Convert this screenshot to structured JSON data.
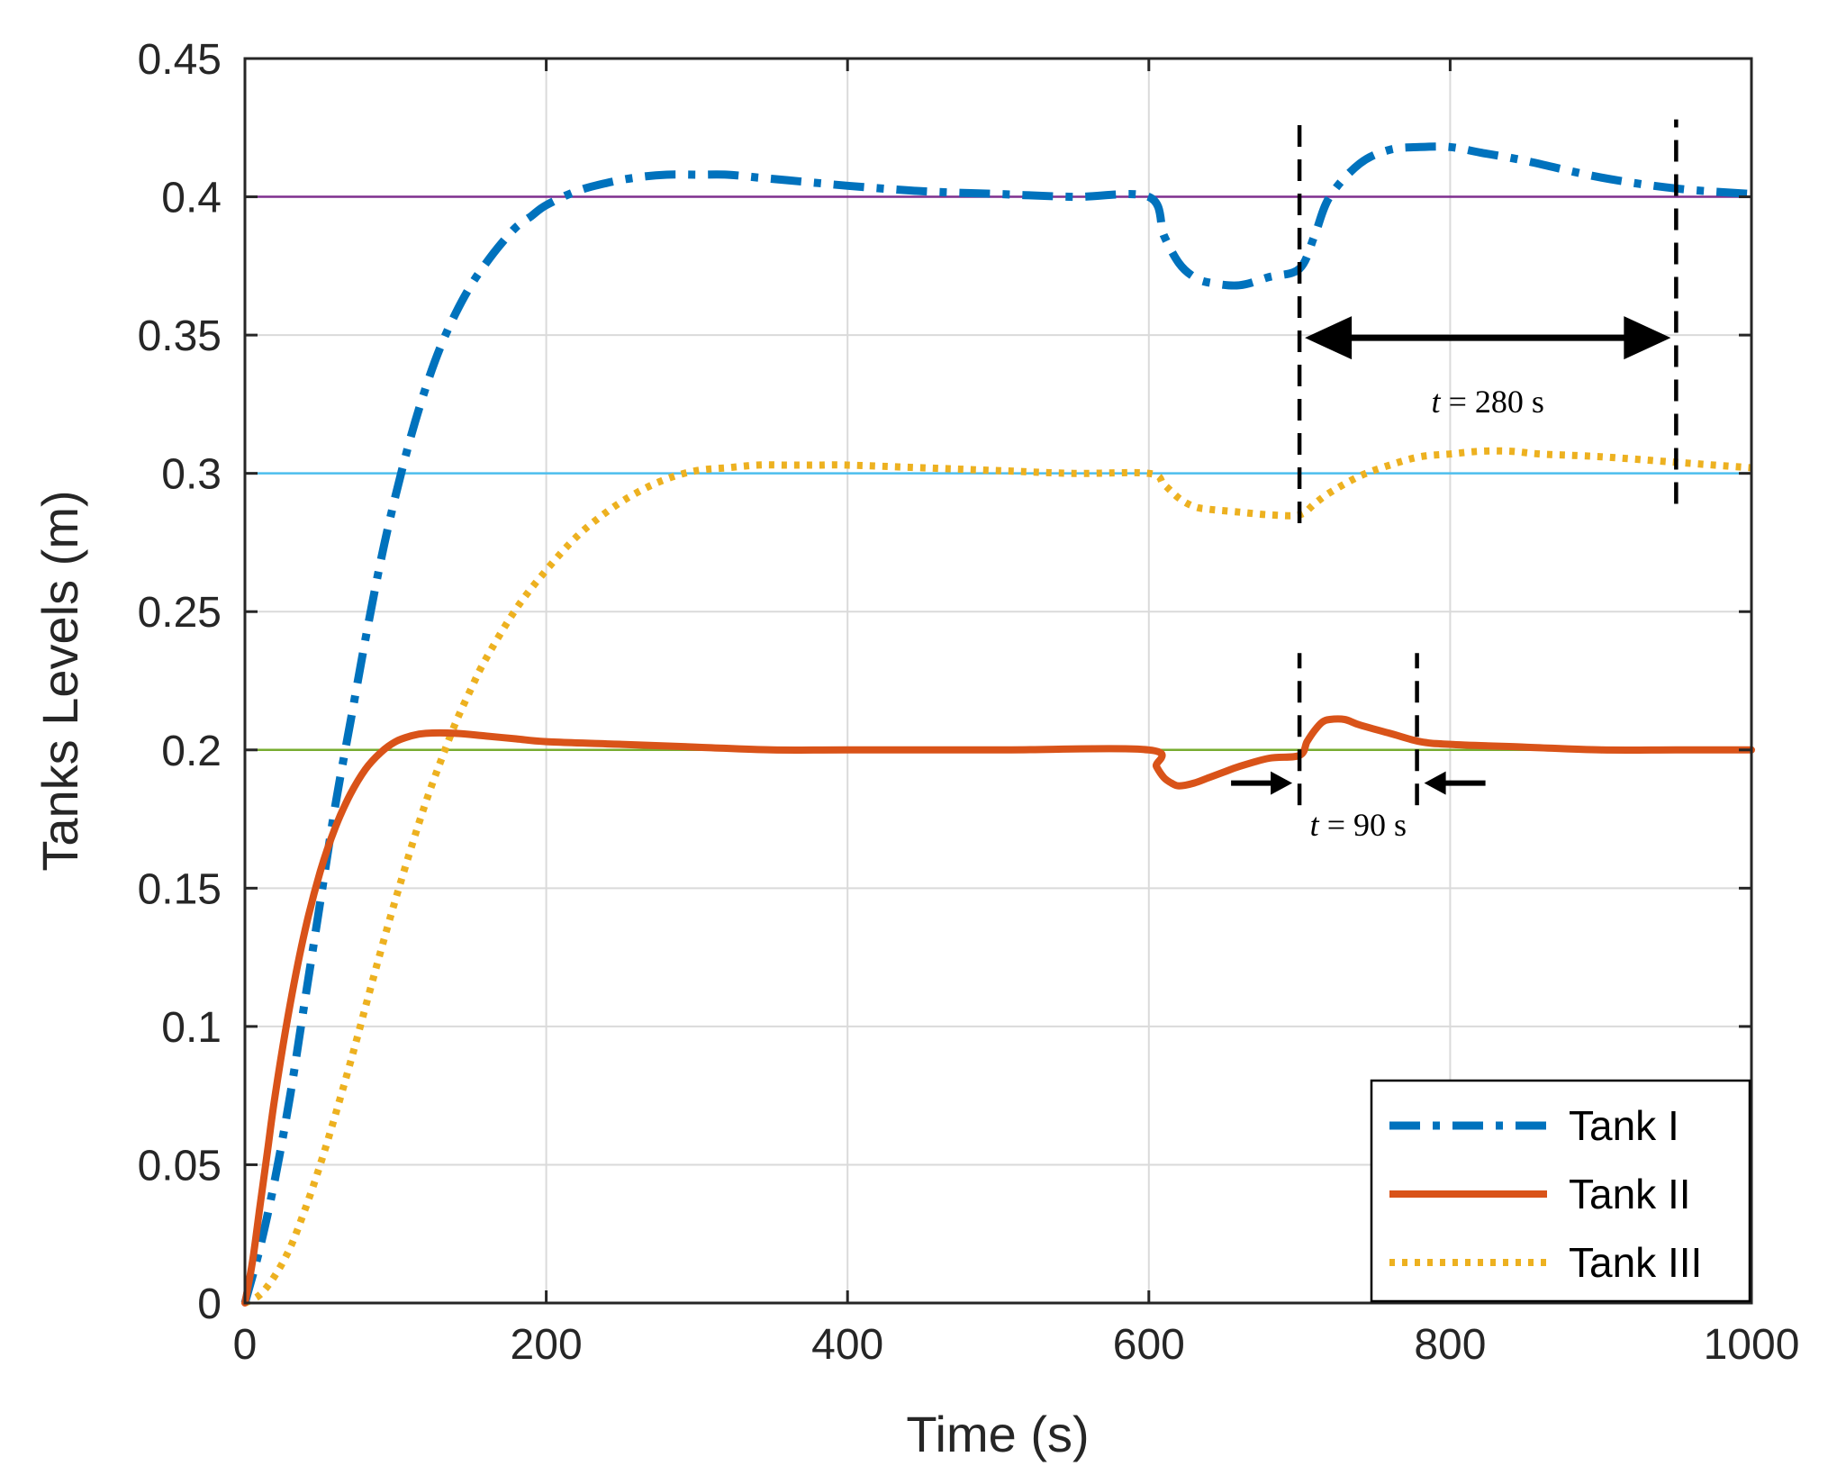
{
  "chart_data": {
    "type": "line",
    "title": "",
    "xlabel": "Time (s)",
    "ylabel": "Tanks Levels (m)",
    "xlim": [
      0,
      1000
    ],
    "ylim": [
      0,
      0.45
    ],
    "xticks": [
      0,
      200,
      400,
      600,
      800,
      1000
    ],
    "xtick_labels": [
      "0",
      "200",
      "400",
      "600",
      "800",
      "1000"
    ],
    "yticks": [
      0,
      0.05,
      0.1,
      0.15,
      0.2,
      0.25,
      0.3,
      0.35,
      0.4,
      0.45
    ],
    "ytick_labels": [
      "0",
      "0.05",
      "0.1",
      "0.15",
      "0.2",
      "0.25",
      "0.3",
      "0.35",
      "0.4",
      "0.45"
    ],
    "grid": true,
    "legend_position": "bottom-right",
    "series": [
      {
        "name": "Tank I",
        "color": "#0072BD",
        "style": "dash-dot",
        "x": [
          0,
          10,
          20,
          30,
          40,
          50,
          60,
          70,
          80,
          90,
          100,
          110,
          120,
          130,
          140,
          150,
          160,
          170,
          180,
          190,
          200,
          220,
          240,
          260,
          280,
          300,
          320,
          340,
          360,
          380,
          400,
          450,
          500,
          550,
          600,
          610,
          620,
          630,
          640,
          660,
          680,
          700,
          710,
          720,
          740,
          760,
          780,
          800,
          820,
          850,
          900,
          950,
          1000
        ],
        "y": [
          0,
          0.02,
          0.045,
          0.075,
          0.11,
          0.145,
          0.18,
          0.21,
          0.24,
          0.268,
          0.292,
          0.313,
          0.331,
          0.346,
          0.358,
          0.368,
          0.376,
          0.383,
          0.389,
          0.393,
          0.397,
          0.402,
          0.405,
          0.407,
          0.408,
          0.408,
          0.408,
          0.407,
          0.406,
          0.405,
          0.404,
          0.402,
          0.401,
          0.4,
          0.4,
          0.386,
          0.376,
          0.371,
          0.369,
          0.368,
          0.371,
          0.374,
          0.386,
          0.4,
          0.412,
          0.417,
          0.418,
          0.418,
          0.416,
          0.413,
          0.407,
          0.403,
          0.401
        ]
      },
      {
        "name": "Tank II",
        "color": "#D95319",
        "style": "solid",
        "x": [
          0,
          5,
          10,
          15,
          20,
          30,
          40,
          50,
          60,
          70,
          80,
          90,
          100,
          110,
          120,
          140,
          160,
          180,
          200,
          250,
          300,
          350,
          400,
          500,
          600,
          605,
          610,
          615,
          620,
          630,
          640,
          650,
          660,
          680,
          700,
          705,
          710,
          715,
          720,
          730,
          740,
          760,
          780,
          800,
          850,
          900,
          950,
          1000
        ],
        "y": [
          0,
          0.015,
          0.035,
          0.055,
          0.075,
          0.108,
          0.135,
          0.156,
          0.172,
          0.184,
          0.193,
          0.199,
          0.203,
          0.205,
          0.206,
          0.206,
          0.205,
          0.204,
          0.203,
          0.202,
          0.201,
          0.2,
          0.2,
          0.2,
          0.2,
          0.194,
          0.19,
          0.188,
          0.187,
          0.188,
          0.19,
          0.192,
          0.194,
          0.197,
          0.198,
          0.203,
          0.207,
          0.21,
          0.211,
          0.211,
          0.209,
          0.206,
          0.203,
          0.202,
          0.201,
          0.2,
          0.2,
          0.2
        ]
      },
      {
        "name": "Tank III",
        "color": "#EDB120",
        "style": "dotted",
        "x": [
          0,
          10,
          20,
          30,
          40,
          50,
          60,
          70,
          80,
          90,
          100,
          110,
          120,
          130,
          140,
          150,
          160,
          180,
          200,
          220,
          240,
          260,
          280,
          300,
          320,
          340,
          360,
          380,
          400,
          450,
          500,
          550,
          600,
          610,
          620,
          630,
          640,
          660,
          680,
          700,
          710,
          720,
          740,
          760,
          780,
          800,
          820,
          840,
          860,
          900,
          950,
          1000
        ],
        "y": [
          0,
          0.003,
          0.01,
          0.02,
          0.034,
          0.05,
          0.068,
          0.087,
          0.107,
          0.127,
          0.146,
          0.164,
          0.181,
          0.196,
          0.21,
          0.222,
          0.233,
          0.251,
          0.265,
          0.277,
          0.286,
          0.293,
          0.298,
          0.301,
          0.302,
          0.303,
          0.303,
          0.303,
          0.303,
          0.302,
          0.301,
          0.3,
          0.3,
          0.296,
          0.291,
          0.288,
          0.287,
          0.286,
          0.285,
          0.285,
          0.289,
          0.293,
          0.299,
          0.303,
          0.306,
          0.307,
          0.308,
          0.308,
          0.307,
          0.306,
          0.304,
          0.302
        ]
      }
    ],
    "reference_lines": [
      {
        "y": 0.4,
        "color": "#7E2F8E"
      },
      {
        "y": 0.3,
        "color": "#4DBEEE"
      },
      {
        "y": 0.2,
        "color": "#77AC30"
      }
    ],
    "annotations": [
      {
        "italic": "t",
        "text": " = 280 s",
        "x_start": 700,
        "x_end": 950,
        "arrow_y": 0.349,
        "label_x": 825,
        "label_y": 0.322,
        "arrow_type": "double"
      },
      {
        "italic": "t",
        "text": " = 90 s",
        "x_start": 700,
        "x_end": 778,
        "arrow_y": 0.188,
        "label_x": 739,
        "label_y": 0.169,
        "arrow_type": "inward"
      }
    ],
    "markers": [
      {
        "x": 700,
        "y_from": 0.282,
        "y_to": 0.428
      },
      {
        "x": 950,
        "y_from": 0.289,
        "y_to": 0.428
      },
      {
        "x": 700,
        "y_from": 0.18,
        "y_to": 0.235
      },
      {
        "x": 778,
        "y_from": 0.18,
        "y_to": 0.235
      }
    ]
  }
}
